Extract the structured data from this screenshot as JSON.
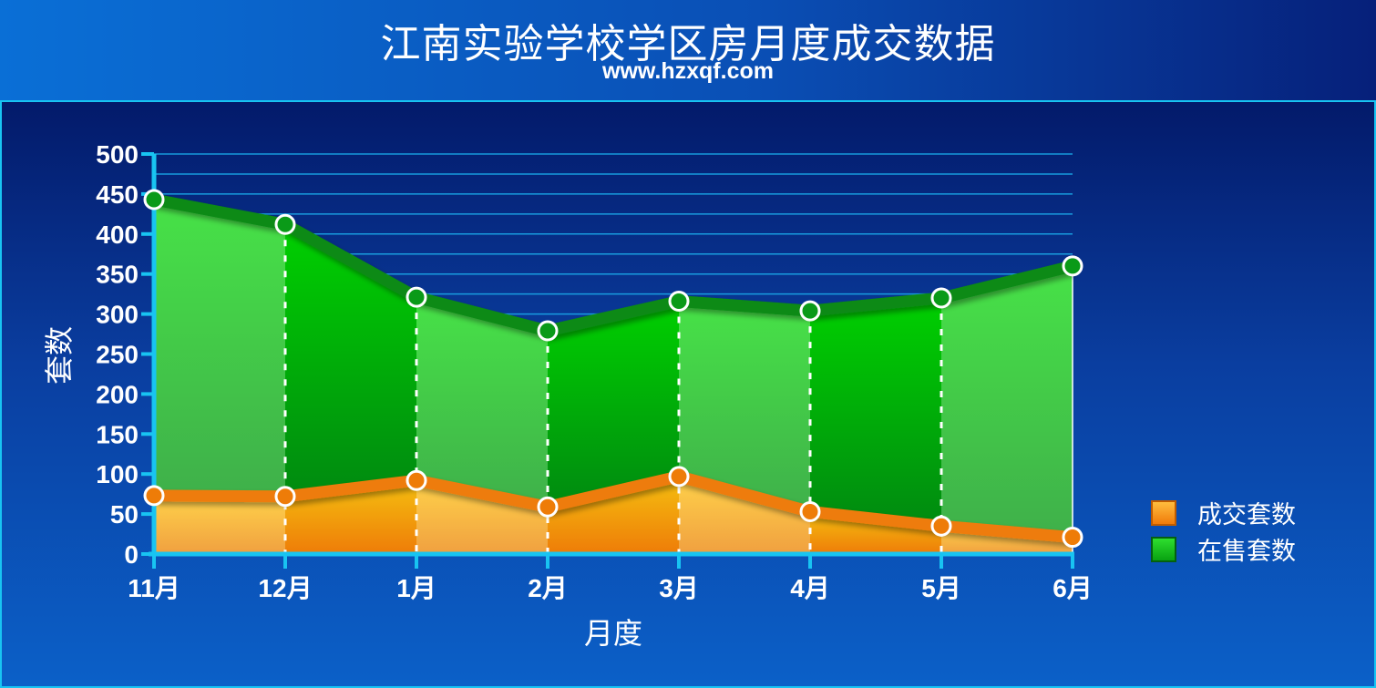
{
  "header": {
    "title": "江南实验学校学区房月度成交数据",
    "subtitle": "www.hzxqf.com"
  },
  "colors": {
    "accent": "#18c4f2",
    "sold": "#f08a10",
    "listed": "#0fa81a",
    "background": "#0a4fb5"
  },
  "chart_data": {
    "type": "area",
    "title": "江南实验学校学区房月度成交数据",
    "subtitle": "www.hzxqf.com",
    "xlabel": "月度",
    "ylabel": "套数",
    "categories": [
      "11月",
      "12月",
      "1月",
      "2月",
      "3月",
      "4月",
      "5月",
      "6月"
    ],
    "ylim": [
      0,
      500
    ],
    "yticks": [
      0,
      50,
      100,
      150,
      200,
      250,
      300,
      350,
      400,
      450,
      500
    ],
    "grid": true,
    "legend_position": "right",
    "series": [
      {
        "name": "成交套数",
        "values": [
          73,
          72,
          92,
          59,
          97,
          53,
          35,
          21
        ]
      },
      {
        "name": "在售套数",
        "values": [
          443,
          412,
          321,
          279,
          316,
          304,
          320,
          360
        ]
      }
    ]
  }
}
